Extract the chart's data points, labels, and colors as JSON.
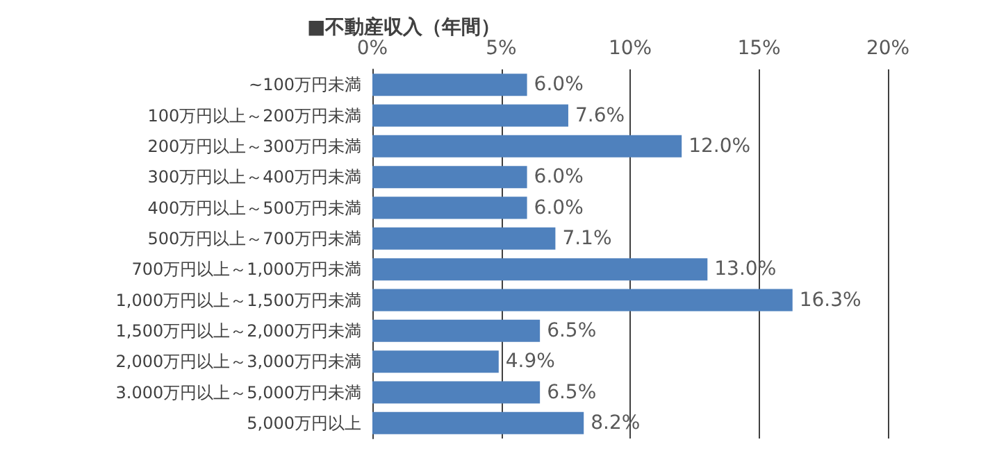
{
  "chart_data": {
    "type": "bar",
    "orientation": "horizontal",
    "title": "■不動産収入（年間）",
    "categories": [
      "~100万円未満",
      "100万円以上～200万円未満",
      "200万円以上～300万円未満",
      "300万円以上～400万円未満",
      "400万円以上～500万円未満",
      "500万円以上～700万円未満",
      "700万円以上～1,000万円未満",
      "1,000万円以上～1,500万円未満",
      "1,500万円以上～2,000万円未満",
      "2,000万円以上～3,000万円未満",
      "3.000万円以上～5,000万円未満",
      "5,000万円以上"
    ],
    "values": [
      6.0,
      7.6,
      12.0,
      6.0,
      6.0,
      7.1,
      13.0,
      16.3,
      6.5,
      4.9,
      6.5,
      8.2
    ],
    "value_labels": [
      "6.0%",
      "7.6%",
      "12.0%",
      "6.0%",
      "6.0%",
      "7.1%",
      "13.0%",
      "16.3%",
      "6.5%",
      "4.9%",
      "6.5%",
      "8.2%"
    ],
    "color": "#4f81bd",
    "xlim": [
      0,
      20
    ],
    "xticks": [
      {
        "value": 0,
        "label": "0%"
      },
      {
        "value": 5,
        "label": "5%"
      },
      {
        "value": 10,
        "label": "10%"
      },
      {
        "value": 15,
        "label": "15%"
      },
      {
        "value": 20,
        "label": "20%"
      }
    ],
    "grid": "x"
  }
}
